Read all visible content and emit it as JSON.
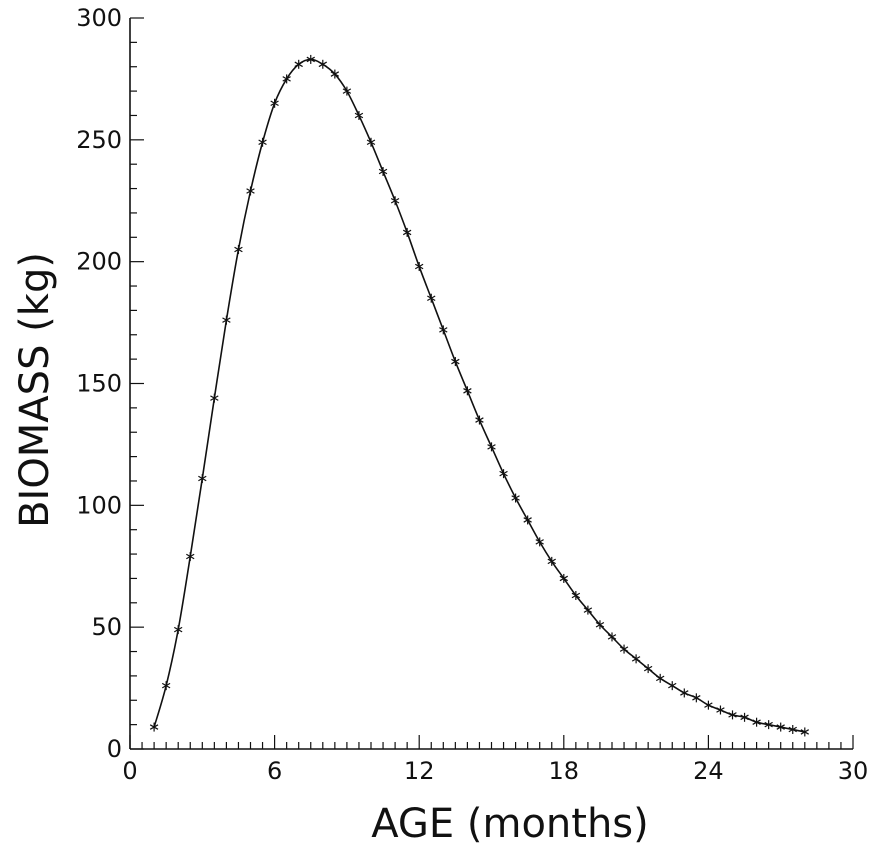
{
  "chart_data": {
    "type": "line",
    "title": "",
    "xlabel": "AGE (months)",
    "ylabel": "BIOMASS (kg)",
    "xlim": [
      0,
      30
    ],
    "ylim": [
      0,
      300
    ],
    "x_ticks": [
      0,
      6,
      12,
      18,
      24,
      30
    ],
    "y_ticks": [
      0,
      50,
      100,
      150,
      200,
      250,
      300
    ],
    "x_tick_labels": [
      "0",
      "6",
      "12",
      "18",
      "24",
      "30"
    ],
    "y_tick_labels": [
      "0",
      "50",
      "100",
      "150",
      "200",
      "250",
      "300"
    ],
    "x_minor_step": 0.5,
    "y_minor_step": 10,
    "grid": false,
    "marker": "asterisk",
    "series": [
      {
        "x": [
          1.0,
          1.5,
          2.0,
          2.5,
          3.0,
          3.5,
          4.0,
          4.5,
          5.0,
          5.5,
          6.0,
          6.5,
          7.0,
          7.5,
          8.0,
          8.5,
          9.0,
          9.5,
          10.0,
          10.5,
          11.0,
          11.5,
          12.0,
          12.5,
          13.0,
          13.5,
          14.0,
          14.5,
          15.0,
          15.5,
          16.0,
          16.5,
          17.0,
          17.5,
          18.0,
          18.5,
          19.0,
          19.5,
          20.0,
          20.5,
          21.0,
          21.5,
          22.0,
          22.5,
          23.0,
          23.5,
          24.0,
          24.5,
          25.0,
          25.5,
          26.0,
          26.5,
          27.0,
          27.5,
          28.0
        ],
        "y": [
          9,
          26,
          49,
          79,
          111,
          144,
          176,
          205,
          229,
          249,
          265,
          275,
          281,
          283,
          281,
          277,
          270,
          260,
          249,
          237,
          225,
          212,
          198,
          185,
          172,
          159,
          147,
          135,
          124,
          113,
          103,
          94,
          85,
          77,
          70,
          63,
          57,
          51,
          46,
          41,
          37,
          33,
          29,
          26,
          23,
          21,
          18,
          16,
          14,
          13,
          11,
          10,
          9,
          8,
          7
        ]
      }
    ]
  }
}
